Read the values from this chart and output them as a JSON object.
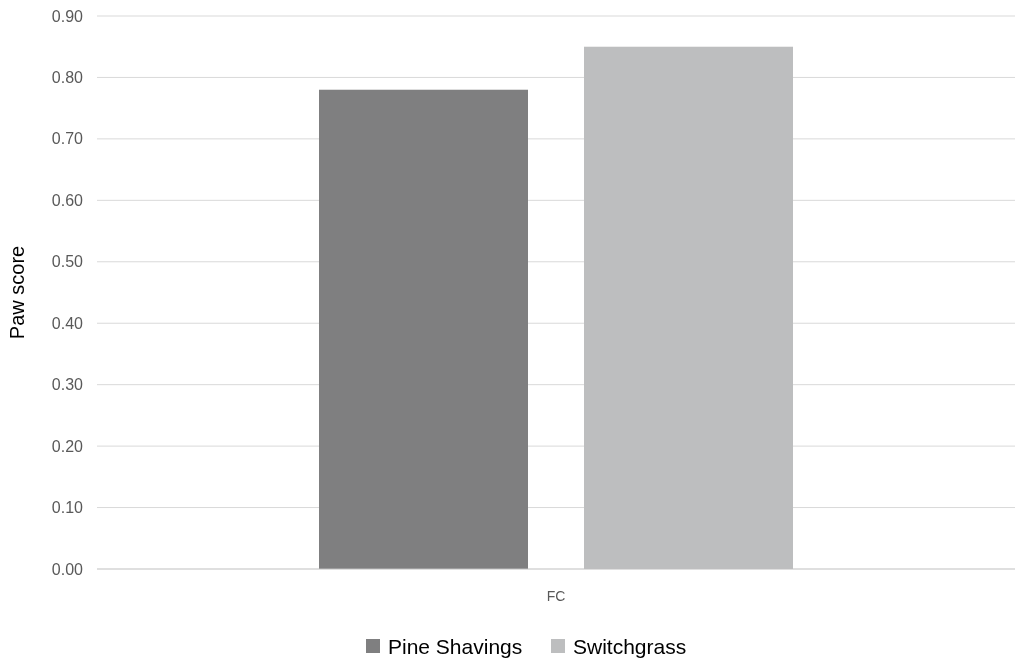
{
  "chart_data": {
    "type": "bar",
    "ylabel": "Paw score",
    "categories": [
      "FC"
    ],
    "series": [
      {
        "name": "Pine Shavings",
        "color": "#7f7f80",
        "values": [
          0.78
        ]
      },
      {
        "name": "Switchgrass",
        "color": "#bdbebf",
        "values": [
          0.85
        ]
      }
    ],
    "ylim": [
      0,
      0.9
    ],
    "yticks": [
      {
        "value": 0,
        "label": "0.00"
      },
      {
        "value": 0.1,
        "label": "0.10"
      },
      {
        "value": 0.2,
        "label": "0.20"
      },
      {
        "value": 0.3,
        "label": "0.30"
      },
      {
        "value": 0.4,
        "label": "0.40"
      },
      {
        "value": 0.5,
        "label": "0.50"
      },
      {
        "value": 0.6,
        "label": "0.60"
      },
      {
        "value": 0.7,
        "label": "0.70"
      },
      {
        "value": 0.8,
        "label": "0.80"
      },
      {
        "value": 0.9,
        "label": "0.90"
      }
    ],
    "grid": "y",
    "legend": "bottom"
  }
}
